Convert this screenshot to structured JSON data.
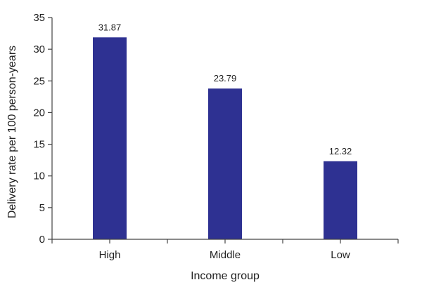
{
  "chart_data": {
    "type": "bar",
    "categories": [
      "High",
      "Middle",
      "Low"
    ],
    "values": [
      31.87,
      23.79,
      12.32
    ],
    "data_labels": [
      "31.87",
      "23.79",
      "12.32"
    ],
    "title": "",
    "xlabel": "Income group",
    "ylabel": "Delivery rate per 100 person-years",
    "ylim": [
      0,
      35
    ],
    "yticks": [
      0,
      5,
      10,
      15,
      20,
      25,
      30,
      35
    ],
    "grid": false,
    "legend": "none",
    "bar_color": "#2e3192"
  }
}
